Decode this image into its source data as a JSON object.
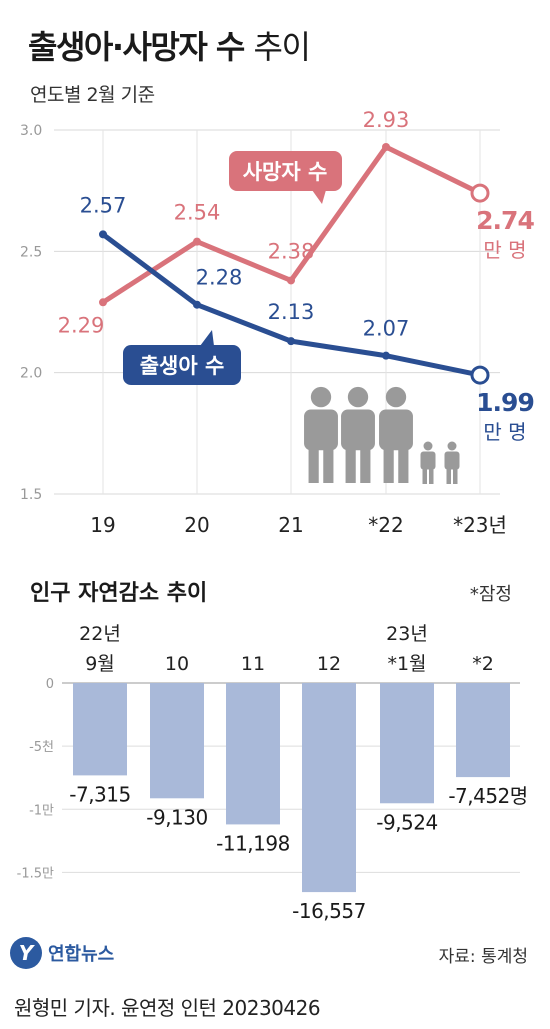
{
  "title_bold": "출생아·사망자 수",
  "title_light": "추이",
  "subtitle": "연도별 2월 기준",
  "chart_data": [
    {
      "type": "line",
      "categories": [
        "19",
        "20",
        "21",
        "*22",
        "*23년"
      ],
      "ylim": [
        1.5,
        3.0
      ],
      "yticks": [
        "1.5",
        "2.0",
        "2.5",
        "3.0"
      ],
      "grid": true,
      "series": [
        {
          "name": "사망자 수",
          "values": [
            2.29,
            2.54,
            2.38,
            2.93,
            2.74
          ],
          "labels": [
            "2.29",
            "2.54",
            "2.38",
            "2.93",
            "2.74"
          ],
          "color": "#d9737b"
        },
        {
          "name": "출생아 수",
          "values": [
            2.57,
            2.28,
            2.13,
            2.07,
            1.99
          ],
          "labels": [
            "2.57",
            "2.28",
            "2.13",
            "2.07",
            "1.99"
          ],
          "color": "#2a4e92"
        }
      ],
      "unit": "만 명"
    },
    {
      "type": "bar",
      "title": "인구 자연감소 추이",
      "note": "*잠정",
      "categories": [
        [
          "22년",
          "9월"
        ],
        [
          "10"
        ],
        [
          "11"
        ],
        [
          "12"
        ],
        [
          "23년",
          "*1월"
        ],
        [
          "*2"
        ]
      ],
      "values": [
        -7315,
        -9130,
        -11198,
        -16557,
        -9524,
        -7452
      ],
      "labels": [
        "-7,315",
        "-9,130",
        "-11,198",
        "-16,557",
        "-9,524",
        "-7,452명"
      ],
      "ylim": [
        -17500,
        0
      ],
      "yticks": [
        {
          "value": 0,
          "label": "0"
        },
        {
          "value": -5000,
          "label": "-5천"
        },
        {
          "value": -10000,
          "label": "-1만"
        },
        {
          "value": -15000,
          "label": "-1.5만"
        }
      ],
      "color": "#a9b9d9"
    }
  ],
  "logo_name": "연합뉴스",
  "source": "자료: 통계청",
  "credit": "원형민 기자. 윤연정 인턴  20230426",
  "colors": {
    "death": "#d9737b",
    "birth": "#2a4e92",
    "bar": "#a9b9d9",
    "people": "#9a9a9a"
  }
}
